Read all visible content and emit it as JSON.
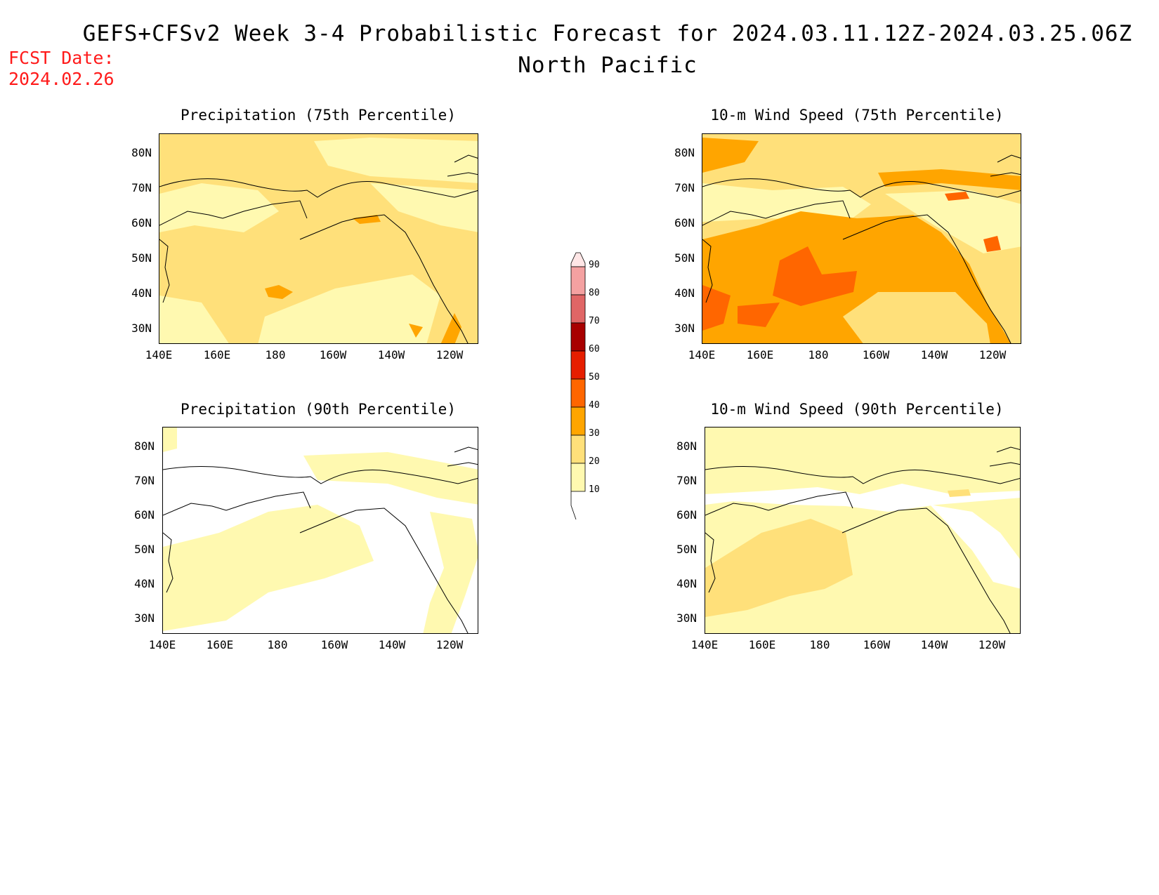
{
  "header": {
    "title": "GEFS+CFSv2 Week 3-4 Probabilistic Forecast for 2024.03.11.12Z-2024.03.25.06Z",
    "subtitle": "North Pacific",
    "fcst_label": "FCST Date:",
    "fcst_value": "2024.02.26"
  },
  "map_axes": {
    "lat_labels": [
      "80N",
      "70N",
      "60N",
      "50N",
      "40N",
      "30N"
    ],
    "lon_labels": [
      "140E",
      "160E",
      "180",
      "160W",
      "140W",
      "120W"
    ],
    "region": "North Pacific",
    "extent": {
      "lon": [
        140,
        250
      ],
      "lat": [
        25,
        85
      ]
    }
  },
  "panels": [
    {
      "id": "precip-75",
      "title": "Precipitation (75th Percentile)",
      "dominant_category": "10-30"
    },
    {
      "id": "wind-75",
      "title": "10-m Wind Speed (75th Percentile)",
      "dominant_category": "30-40"
    },
    {
      "id": "precip-90",
      "title": "Precipitation (90th Percentile)",
      "dominant_category": "<10-20"
    },
    {
      "id": "wind-90",
      "title": "10-m Wind Speed (90th Percentile)",
      "dominant_category": "10-20"
    }
  ],
  "colorbar": {
    "levels": [
      "90",
      "80",
      "70",
      "60",
      "50",
      "40",
      "30",
      "20",
      "10"
    ],
    "colors": [
      "#ffe6e6",
      "#f4a1a1",
      "#e06666",
      "#a80000",
      "#e61e00",
      "#ff6600",
      "#ffa500",
      "#ffe07a",
      "#fff9b0"
    ]
  },
  "palette": {
    "c10": "#fff9b0",
    "c20": "#ffe07a",
    "c30": "#ffa500",
    "c40": "#ff6600",
    "fcst_red": "#ff1a1a"
  }
}
